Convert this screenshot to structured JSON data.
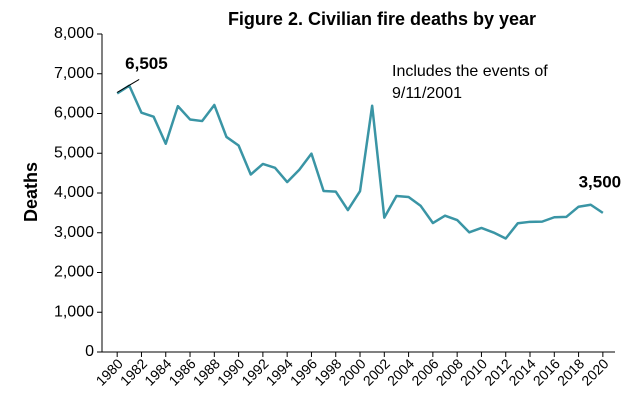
{
  "chart_data": {
    "type": "line",
    "title": "Figure 2. Civilian fire deaths by year",
    "y_label": "Deaths",
    "x": [
      1980,
      1981,
      1982,
      1983,
      1984,
      1985,
      1986,
      1987,
      1988,
      1989,
      1990,
      1991,
      1992,
      1993,
      1994,
      1995,
      1996,
      1997,
      1998,
      1999,
      2000,
      2001,
      2002,
      2003,
      2004,
      2005,
      2006,
      2007,
      2008,
      2009,
      2010,
      2011,
      2012,
      2013,
      2014,
      2015,
      2016,
      2017,
      2018,
      2019,
      2020
    ],
    "series": [
      {
        "color": "#3a95a5",
        "values": [
          6505,
          6700,
          6020,
          5920,
          5240,
          6185,
          5850,
          5810,
          6215,
          5410,
          5195,
          4465,
          4730,
          4635,
          4275,
          4585,
          4990,
          4050,
          4035,
          3570,
          4045,
          6196,
          3380,
          3925,
          3900,
          3675,
          3245,
          3430,
          3320,
          3010,
          3120,
          3005,
          2855,
          3240,
          3275,
          3280,
          3390,
          3400,
          3655,
          3704,
          3500
        ],
        "value_labels": [
          "6,505",
          null,
          null,
          null,
          null,
          null,
          null,
          null,
          null,
          null,
          null,
          null,
          null,
          null,
          null,
          null,
          null,
          null,
          null,
          null,
          null,
          null,
          null,
          null,
          null,
          null,
          null,
          null,
          null,
          null,
          null,
          null,
          null,
          null,
          null,
          null,
          null,
          null,
          null,
          null,
          "3,500"
        ]
      }
    ],
    "annotation": [
      "Includes the events of",
      "9/11/2001"
    ],
    "xlim": [
      1978.75,
      2021
    ],
    "xticks": [
      1980,
      1982,
      1984,
      1986,
      1988,
      1990,
      1992,
      1994,
      1996,
      1998,
      2000,
      2002,
      2004,
      2006,
      2008,
      2010,
      2012,
      2014,
      2016,
      2018,
      2020
    ],
    "ylim": [
      0,
      8000
    ],
    "yticks": [
      0,
      {
        "value": 1000,
        "label": "1,000"
      },
      {
        "value": 2000,
        "label": "2,000"
      },
      {
        "value": 3000,
        "label": "3,000"
      },
      {
        "value": 4000,
        "label": "4,000"
      },
      {
        "value": 5000,
        "label": "5,000"
      },
      {
        "value": 6000,
        "label": "6,000"
      },
      {
        "value": 7000,
        "label": "7,000"
      },
      {
        "value": 8000,
        "label": "8,000"
      }
    ],
    "grid": false
  }
}
